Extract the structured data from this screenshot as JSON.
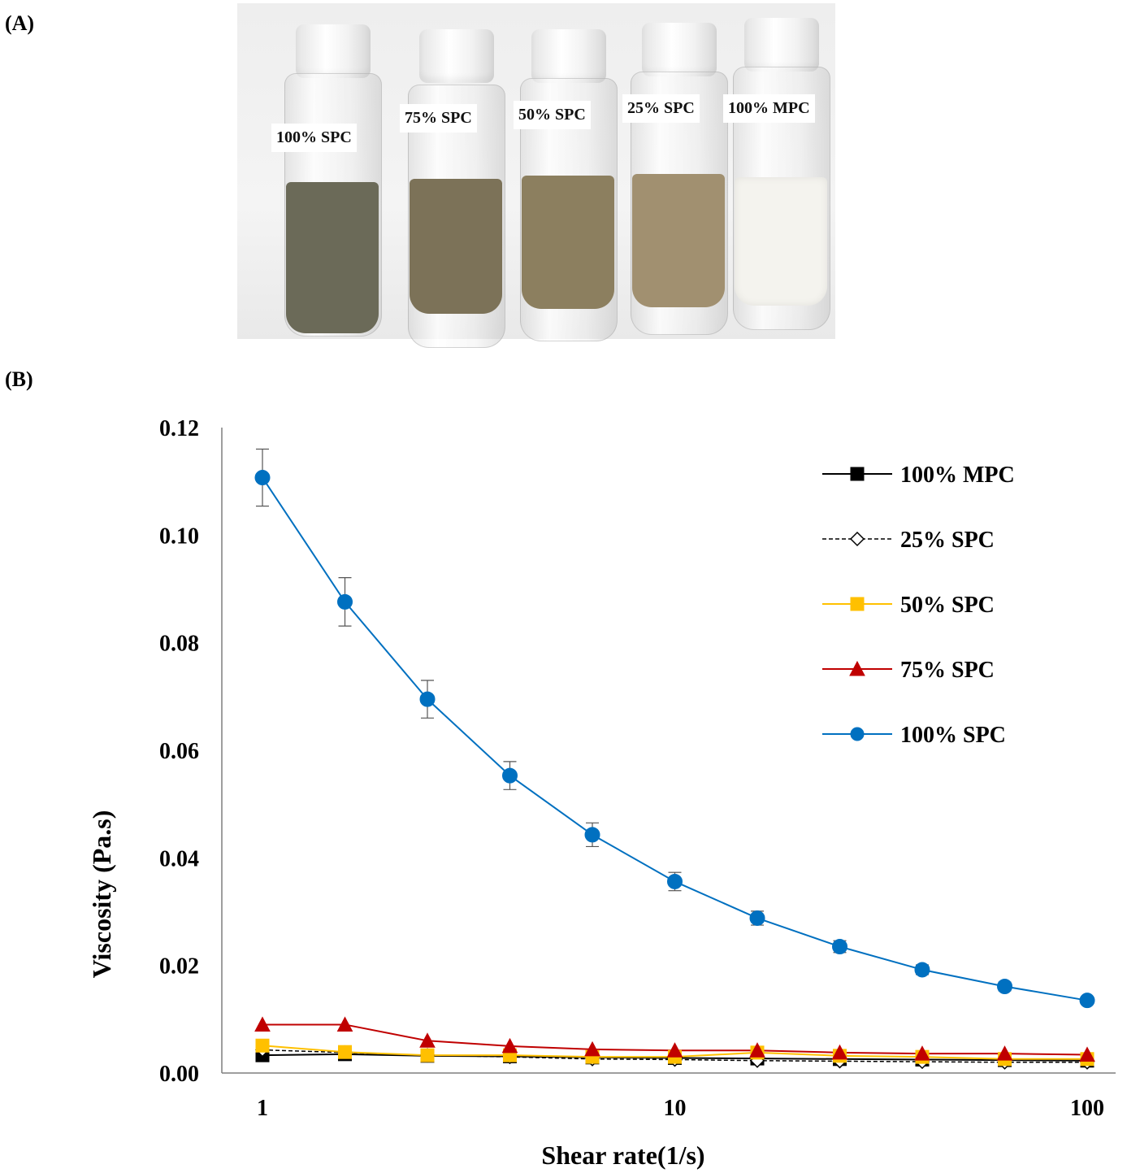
{
  "panels": {
    "a_label": "(A)",
    "b_label": "(B)"
  },
  "vials": [
    {
      "label": "100% SPC",
      "liquid_color": "#6b6a58"
    },
    {
      "label": "75% SPC",
      "liquid_color": "#7c7258"
    },
    {
      "label": "50% SPC",
      "liquid_color": "#8c7f5f"
    },
    {
      "label": "25% SPC",
      "liquid_color": "#a19070"
    },
    {
      "label": "100% MPC",
      "liquid_color": "#f4f3ee"
    }
  ],
  "chart_data": {
    "type": "line",
    "xscale": "log",
    "xlabel": "Shear rate(1/s)",
    "ylabel": "Viscosity (Pa.s)",
    "xlim": [
      1,
      100
    ],
    "ylim": [
      0,
      0.12
    ],
    "x_ticks": [
      "1",
      "10",
      "100"
    ],
    "y_ticks": [
      "0.00",
      "0.02",
      "0.04",
      "0.06",
      "0.08",
      "0.10",
      "0.12"
    ],
    "grid": false,
    "legend_position": "top-right",
    "x": [
      1,
      1.585,
      2.512,
      3.981,
      6.31,
      10,
      15.85,
      25.12,
      39.81,
      63.1,
      100
    ],
    "series": [
      {
        "name": "100% MPC",
        "marker": "square",
        "color": "#000000",
        "line": "solid",
        "fill": "#000000",
        "values": [
          0.0033,
          0.0035,
          0.0032,
          0.0031,
          0.0029,
          0.0028,
          0.0027,
          0.0026,
          0.0025,
          0.0024,
          0.0023
        ]
      },
      {
        "name": "25% SPC",
        "marker": "diamond",
        "color": "#000000",
        "line": "dashed",
        "fill": "#ffffff",
        "values": [
          0.0043,
          0.0038,
          0.0033,
          0.003,
          0.0026,
          0.0025,
          0.0023,
          0.0022,
          0.0021,
          0.002,
          0.002
        ]
      },
      {
        "name": "50% SPC",
        "marker": "square",
        "color": "#ffc000",
        "line": "solid",
        "fill": "#ffc000",
        "values": [
          0.0051,
          0.0039,
          0.0033,
          0.0033,
          0.003,
          0.003,
          0.0038,
          0.0032,
          0.003,
          0.0026,
          0.0026
        ]
      },
      {
        "name": "75% SPC",
        "marker": "triangle",
        "color": "#c00000",
        "line": "solid",
        "fill": "#c00000",
        "values": [
          0.009,
          0.009,
          0.006,
          0.005,
          0.0044,
          0.0042,
          0.0042,
          0.0038,
          0.0036,
          0.0036,
          0.0034
        ]
      },
      {
        "name": "100% SPC",
        "marker": "circle",
        "color": "#0070c0",
        "line": "solid",
        "fill": "#0070c0",
        "values": [
          0.1107,
          0.0876,
          0.0695,
          0.0553,
          0.0443,
          0.0356,
          0.0288,
          0.0235,
          0.0192,
          0.0161,
          0.0135
        ],
        "errors": [
          0.0053,
          0.0045,
          0.0035,
          0.0026,
          0.0022,
          0.0017,
          0.0013,
          0.0011,
          0.0009,
          0.0008,
          0.0007
        ]
      }
    ]
  }
}
